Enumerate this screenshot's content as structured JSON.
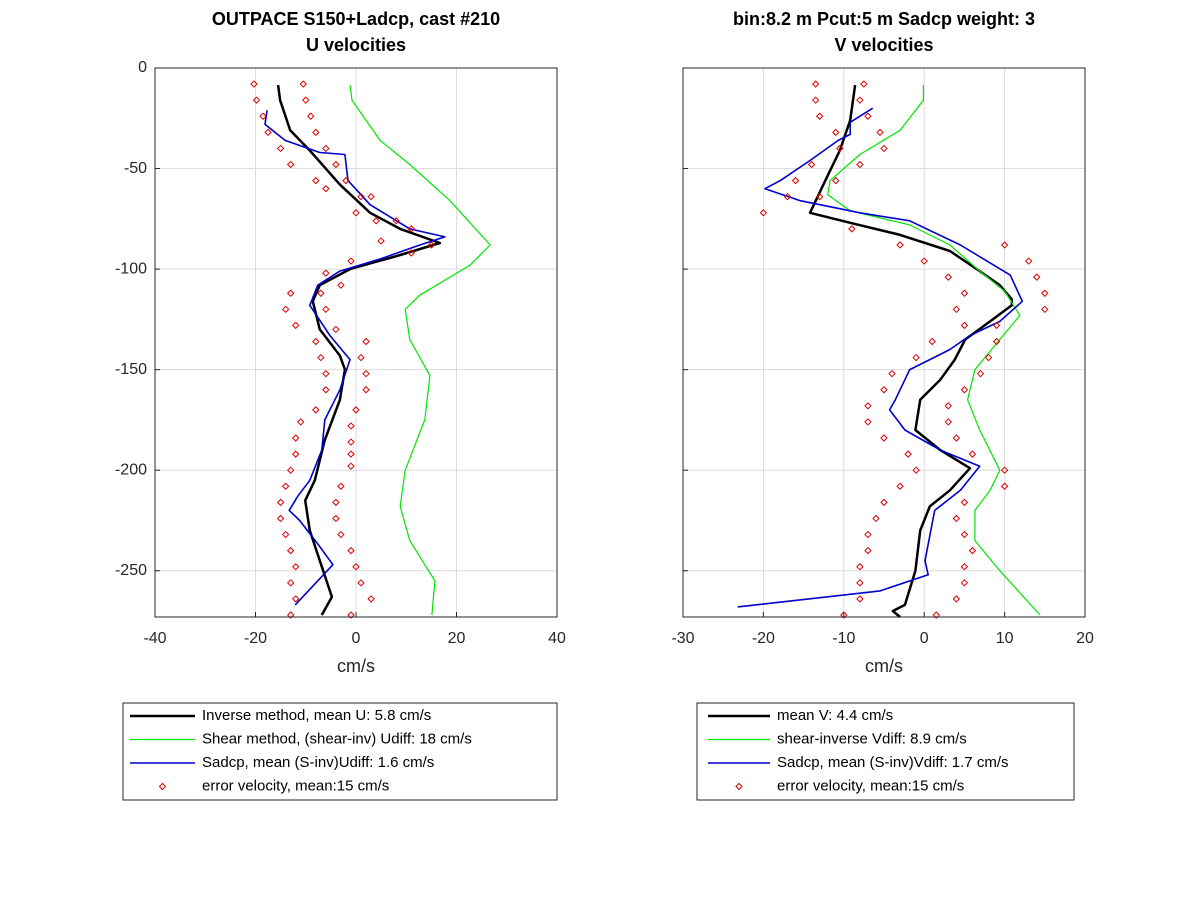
{
  "chart_data": [
    {
      "type": "line",
      "title": [
        "OUTPACE S150+Ladcp, cast #210",
        "U velocities"
      ],
      "xlabel": "cm/s",
      "xlim": [
        -40,
        40
      ],
      "xticks": [
        -40,
        -20,
        0,
        20,
        40
      ],
      "ylim": [
        -273,
        0
      ],
      "yticks": [
        -250,
        -200,
        -150,
        -100,
        -50,
        0
      ],
      "grid": true,
      "series": [
        {
          "name": "Inverse method, mean U:  5.8 cm/s",
          "color": "#000000",
          "linewidth": 2.5,
          "x": [
            -15.5,
            -15.1,
            -13.1,
            -9.2,
            -3.2,
            2.8,
            8.8,
            16.7,
            8.8,
            -1.2,
            -7.2,
            -8.6,
            -7.2,
            -3.2,
            -2.2,
            -3.2,
            -6.2,
            -8.2,
            -10.1,
            -9.2,
            -7.2,
            -4.8,
            -6.8
          ],
          "y": [
            -8.5,
            -16,
            -31,
            -41,
            -58,
            -72,
            -80,
            -87,
            -93,
            -100,
            -108,
            -116,
            -130,
            -143,
            -150,
            -165,
            -185,
            -205,
            -215,
            -230,
            -245,
            -263,
            -272
          ]
        },
        {
          "name": "Shear method, (shear-inv)  Udiff:  18 cm/s",
          "color": "#00e600",
          "linewidth": 1.2,
          "x": [
            -1.2,
            -0.8,
            4.8,
            10.7,
            18.7,
            26.7,
            22.7,
            12.7,
            9.8,
            10.7,
            14.7,
            13.7,
            9.8,
            8.8,
            10.7,
            15.7,
            15.1
          ],
          "y": [
            -8.5,
            -16,
            -36,
            -48,
            -66,
            -88,
            -98,
            -113,
            -120,
            -135,
            -153,
            -175,
            -200,
            -218,
            -235,
            -255,
            -272
          ]
        },
        {
          "name": "Sadcp, mean (S-inv)Udiff: 1.6 cm/s",
          "color": "#0000cc",
          "linewidth": 1.6,
          "x": [
            -17.7,
            -18.1,
            -14.1,
            -7.2,
            -2.2,
            -1.6,
            2.8,
            10.7,
            17.7,
            12.7,
            4.8,
            -3.2,
            -7.6,
            -9.2,
            -5.2,
            -1.2,
            -3.2,
            -6.2,
            -6.8,
            -9.2,
            -11.6,
            -13.3,
            -11.2,
            -7.2,
            -4.6,
            -12.1
          ],
          "y": [
            -21,
            -28,
            -36,
            -42,
            -43,
            -56,
            -68,
            -80,
            -84,
            -88,
            -95,
            -101,
            -108,
            -118,
            -133,
            -145,
            -160,
            -175,
            -190,
            -205,
            -213,
            -220,
            -225,
            -238,
            -247,
            -267
          ]
        },
        {
          "name": "error velocity, mean:15 cm/s",
          "color": "#e00000",
          "marker": "diamond",
          "x": [
            -20.3,
            -10.5,
            -19.8,
            -10,
            -18.5,
            -9,
            -17.5,
            -8,
            -15,
            -6,
            -13,
            -4,
            -8,
            -2,
            -6,
            1,
            0,
            3,
            4,
            8,
            11,
            5,
            15,
            11,
            -1,
            -6,
            -3,
            -13,
            -7,
            -14,
            -6,
            -12,
            -4,
            -8,
            2,
            -7,
            1,
            -6,
            2,
            -6,
            2,
            -8,
            0,
            -11,
            -1,
            -12,
            -1,
            -12,
            -1,
            -13,
            -1,
            -14,
            -3,
            -15,
            -4,
            -15,
            -4,
            -14,
            -3,
            -13,
            -1,
            -12,
            0,
            -13,
            1,
            -12,
            3,
            -13,
            -1
          ],
          "y": [
            -8,
            -8,
            -16,
            -16,
            -24,
            -24,
            -32,
            -32,
            -40,
            -40,
            -48,
            -48,
            -56,
            -56,
            -60,
            -64,
            -72,
            -64,
            -76,
            -76,
            -80,
            -86,
            -88,
            -92,
            -96,
            -102,
            -108,
            -112,
            -112,
            -120,
            -120,
            -128,
            -130,
            -136,
            -136,
            -144,
            -144,
            -152,
            -152,
            -160,
            -160,
            -170,
            -170,
            -176,
            -178,
            -184,
            -186,
            -192,
            -192,
            -200,
            -198,
            -208,
            -208,
            -216,
            -216,
            -224,
            -224,
            -232,
            -232,
            -240,
            -240,
            -248,
            -248,
            -256,
            -256,
            -264,
            -264,
            -272,
            -272
          ]
        }
      ]
    },
    {
      "type": "line",
      "title": [
        "bin:8.2 m  Pcut:5 m  Sadcp weight: 3",
        "V velocities"
      ],
      "xlabel": "cm/s",
      "xlim": [
        -30,
        20
      ],
      "xticks": [
        -30,
        -20,
        -10,
        0,
        10,
        20
      ],
      "ylim": [
        -273,
        0
      ],
      "yticks": [
        -250,
        -200,
        -150,
        -100,
        -50,
        0
      ],
      "grid": true,
      "series": [
        {
          "name": "mean V:  4.4 cm/s",
          "color": "#000000",
          "linewidth": 2.5,
          "x": [
            -8.6,
            -9.2,
            -10.5,
            -12.3,
            -14.2,
            -9.2,
            -3,
            3.2,
            6.9,
            9.4,
            10.9,
            10.9,
            8.2,
            5.1,
            3.8,
            2,
            -0.5,
            -1.1,
            2,
            5.7,
            3.2,
            0.7,
            -0.5,
            -1.1,
            -2.4,
            -3.9,
            -3
          ],
          "y": [
            -8.5,
            -26,
            -41,
            -56,
            -72,
            -77,
            -83,
            -91,
            -101,
            -108,
            -115,
            -118,
            -126,
            -135,
            -145,
            -155,
            -165,
            -180,
            -190,
            -199,
            -210,
            -218,
            -230,
            -250,
            -267,
            -270,
            -273
          ]
        },
        {
          "name": "shear-inverse Vdiff:  8.9 cm/s",
          "color": "#00e600",
          "linewidth": 1.2,
          "x": [
            -0.1,
            -0.1,
            -3,
            -8,
            -11.7,
            -12,
            -9.2,
            -1.8,
            3.2,
            6.9,
            10,
            11.9,
            9.4,
            6.3,
            5.4,
            6.9,
            9.4,
            8.2,
            6.3,
            6.3,
            9.4,
            14.4
          ],
          "y": [
            -8.5,
            -16,
            -31,
            -43,
            -56,
            -63,
            -71,
            -78,
            -88,
            -101,
            -111,
            -123,
            -135,
            -150,
            -165,
            -180,
            -200,
            -210,
            -220,
            -235,
            -250,
            -272
          ]
        },
        {
          "name": "Sadcp, mean (S-inv)Vdiff: 1.7 cm/s",
          "color": "#0000cc",
          "linewidth": 1.6,
          "x": [
            -6.4,
            -9.2,
            -9.2,
            -10.7,
            -14.2,
            -17.9,
            -19.8,
            -15.4,
            -8,
            -1.8,
            4.5,
            10.7,
            12.2,
            9.4,
            5.7,
            3.2,
            0.7,
            -1.8,
            -3.6,
            -4.3,
            -2.4,
            2,
            6.9,
            4.5,
            1.3,
            0.1,
            0.5,
            -5.5,
            -23.2
          ],
          "y": [
            -20,
            -27,
            -33,
            -36,
            -46,
            -56,
            -60,
            -66,
            -72,
            -76,
            -88,
            -103,
            -116,
            -126,
            -133,
            -140,
            -145,
            -150,
            -165,
            -170,
            -180,
            -190,
            -198,
            -210,
            -220,
            -245,
            -252,
            -260,
            -268
          ]
        },
        {
          "name": "error velocity, mean:15 cm/s",
          "color": "#e00000",
          "marker": "diamond",
          "x": [
            -13.5,
            -7.5,
            -13.5,
            -8,
            -13,
            -7,
            -11,
            -5.5,
            -10.5,
            -5,
            -14,
            -8,
            -16,
            -11,
            -17,
            -13,
            -20,
            -9,
            -3,
            10,
            0,
            13,
            3,
            14,
            5,
            15,
            4,
            15,
            5,
            9,
            1,
            9,
            -1,
            8,
            -4,
            7,
            -5,
            5,
            -7,
            3,
            -7,
            3,
            -5,
            4,
            -2,
            6,
            -1,
            10,
            -3,
            10,
            -5,
            5,
            -6,
            4,
            -7,
            5,
            -7,
            6,
            -8,
            5,
            -8,
            5,
            -8,
            4,
            -10,
            1.5
          ],
          "y": [
            -8,
            -8,
            -16,
            -16,
            -24,
            -24,
            -32,
            -32,
            -40,
            -40,
            -48,
            -48,
            -56,
            -56,
            -64,
            -64,
            -72,
            -80,
            -88,
            -88,
            -96,
            -96,
            -104,
            -104,
            -112,
            -112,
            -120,
            -120,
            -128,
            -128,
            -136,
            -136,
            -144,
            -144,
            -152,
            -152,
            -160,
            -160,
            -168,
            -168,
            -176,
            -176,
            -184,
            -184,
            -192,
            -192,
            -200,
            -200,
            -208,
            -208,
            -216,
            -216,
            -224,
            -224,
            -232,
            -232,
            -240,
            -240,
            -248,
            -248,
            -256,
            -256,
            -264,
            -264,
            -272,
            -272
          ]
        }
      ]
    }
  ]
}
